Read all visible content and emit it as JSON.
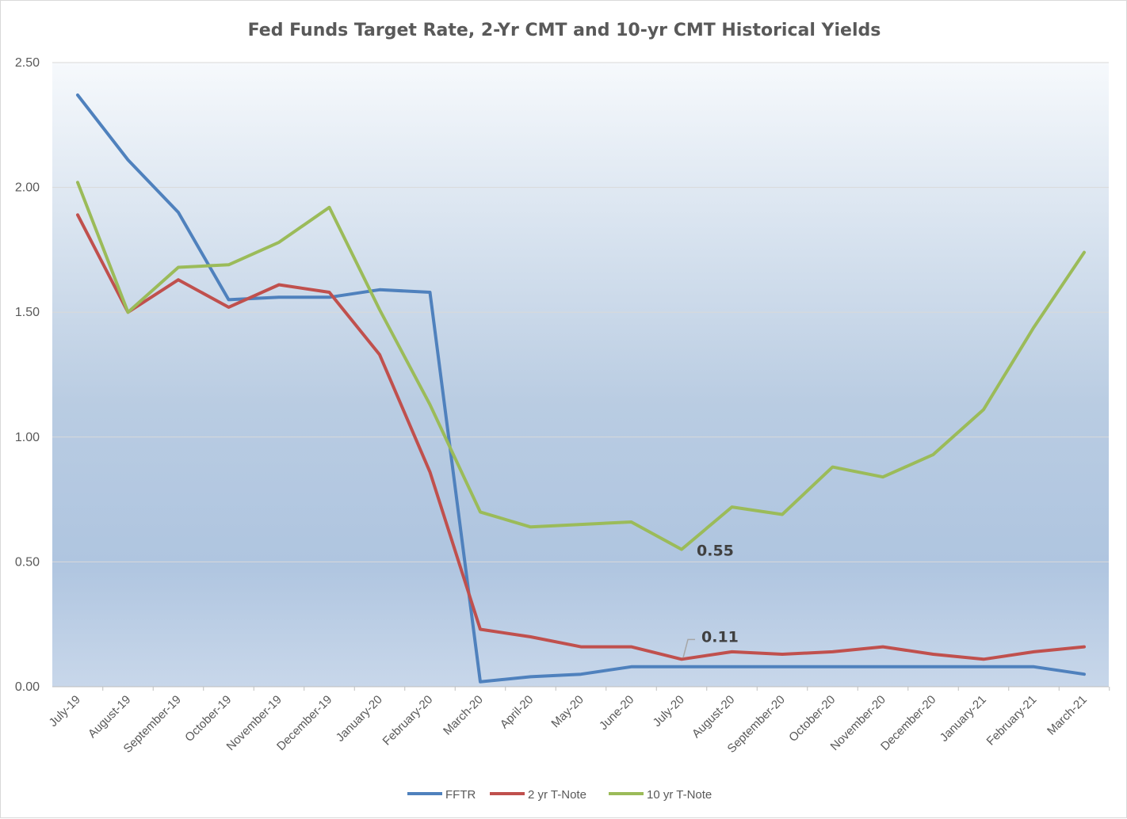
{
  "chart_data": {
    "type": "line",
    "title": "Fed Funds Target Rate, 2-Yr CMT and 10-yr CMT Historical Yields",
    "xlabel": "",
    "ylabel": "",
    "ylim": [
      0,
      2.5
    ],
    "yticks": [
      "0.00",
      "0.50",
      "1.00",
      "1.50",
      "2.00",
      "2.50"
    ],
    "categories": [
      "July-19",
      "August-19",
      "September-19",
      "October-19",
      "November-19",
      "December-19",
      "January-20",
      "February-20",
      "March-20",
      "April-20",
      "May-20",
      "June-20",
      "July-20",
      "August-20",
      "September-20",
      "October-20",
      "November-20",
      "December-20",
      "January-21",
      "February-21",
      "March-21"
    ],
    "series": [
      {
        "name": "FFTR",
        "color": "#4f81bd",
        "values": [
          2.37,
          2.11,
          1.9,
          1.55,
          1.56,
          1.56,
          1.59,
          1.58,
          0.02,
          0.04,
          0.05,
          0.08,
          0.08,
          0.08,
          0.08,
          0.08,
          0.08,
          0.08,
          0.08,
          0.08,
          0.05
        ]
      },
      {
        "name": "2 yr T-Note",
        "color": "#c0504d",
        "values": [
          1.89,
          1.5,
          1.63,
          1.52,
          1.61,
          1.58,
          1.33,
          0.86,
          0.23,
          0.2,
          0.16,
          0.16,
          0.11,
          0.14,
          0.13,
          0.14,
          0.16,
          0.13,
          0.11,
          0.14,
          0.16
        ]
      },
      {
        "name": "10 yr T-Note",
        "color": "#9bbb59",
        "values": [
          2.02,
          1.5,
          1.68,
          1.69,
          1.78,
          1.92,
          1.51,
          1.13,
          0.7,
          0.64,
          0.65,
          0.66,
          0.55,
          0.72,
          0.69,
          0.88,
          0.84,
          0.93,
          1.11,
          1.44,
          1.74
        ]
      }
    ],
    "annotations": [
      {
        "series": "10 yr T-Note",
        "category": "July-20",
        "label": "0.55"
      },
      {
        "series": "2 yr T-Note",
        "category": "July-20",
        "label": "0.11"
      }
    ],
    "grid": true,
    "legend": "bottom"
  }
}
